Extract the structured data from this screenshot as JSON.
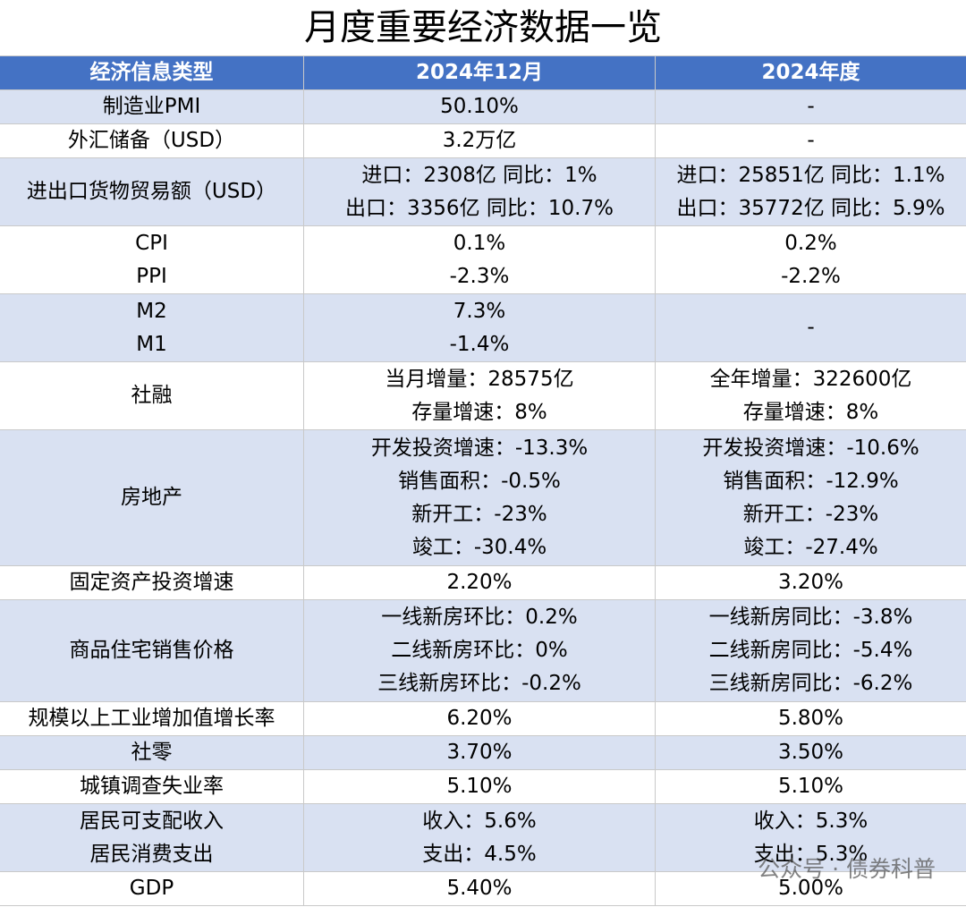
{
  "title": "月度重要经济数据一览",
  "table": {
    "header": [
      "经济信息类型",
      "2024年12月",
      "2024年度"
    ],
    "rows": [
      [
        [
          "制造业PMI"
        ],
        [
          "50.10%"
        ],
        [
          "-"
        ]
      ],
      [
        [
          "外汇储备（USD）"
        ],
        [
          "3.2万亿"
        ],
        [
          "-"
        ]
      ],
      [
        [
          "进出口货物贸易额（USD）"
        ],
        [
          "进口：2308亿 同比：1%",
          "出口：3356亿 同比：10.7%"
        ],
        [
          "进口：25851亿 同比：1.1%",
          "出口：35772亿 同比：5.9%"
        ]
      ],
      [
        [
          "CPI",
          "PPI"
        ],
        [
          "0.1%",
          "-2.3%"
        ],
        [
          "0.2%",
          "-2.2%"
        ]
      ],
      [
        [
          "M2",
          "M1"
        ],
        [
          "7.3%",
          "-1.4%"
        ],
        [
          "-"
        ]
      ],
      [
        [
          "社融"
        ],
        [
          "当月增量：28575亿",
          "存量增速：8%"
        ],
        [
          "全年增量：322600亿",
          "存量增速：8%"
        ]
      ],
      [
        [
          "房地产"
        ],
        [
          "开发投资增速：-13.3%",
          "销售面积：-0.5%",
          "新开工：-23%",
          "竣工：-30.4%"
        ],
        [
          "开发投资增速：-10.6%",
          "销售面积：-12.9%",
          "新开工：-23%",
          "竣工：-27.4%"
        ]
      ],
      [
        [
          "固定资产投资增速"
        ],
        [
          "2.20%"
        ],
        [
          "3.20%"
        ]
      ],
      [
        [
          "商品住宅销售价格"
        ],
        [
          "一线新房环比：0.2%",
          "二线新房环比：0%",
          "三线新房环比：-0.2%"
        ],
        [
          "一线新房同比：-3.8%",
          "二线新房同比：-5.4%",
          "三线新房同比：-6.2%"
        ]
      ],
      [
        [
          "规模以上工业增加值增长率"
        ],
        [
          "6.20%"
        ],
        [
          "5.80%"
        ]
      ],
      [
        [
          "社零"
        ],
        [
          "3.70%"
        ],
        [
          "3.50%"
        ]
      ],
      [
        [
          "城镇调查失业率"
        ],
        [
          "5.10%"
        ],
        [
          "5.10%"
        ]
      ],
      [
        [
          "居民可支配收入",
          "居民消费支出"
        ],
        [
          "收入：5.6%",
          "支出：4.5%"
        ],
        [
          "收入：5.3%",
          "支出：5.3%"
        ]
      ],
      [
        [
          "GDP"
        ],
        [
          "5.40%"
        ],
        [
          "5.00%"
        ]
      ]
    ]
  },
  "watermark": "公众号 · 债券科普"
}
